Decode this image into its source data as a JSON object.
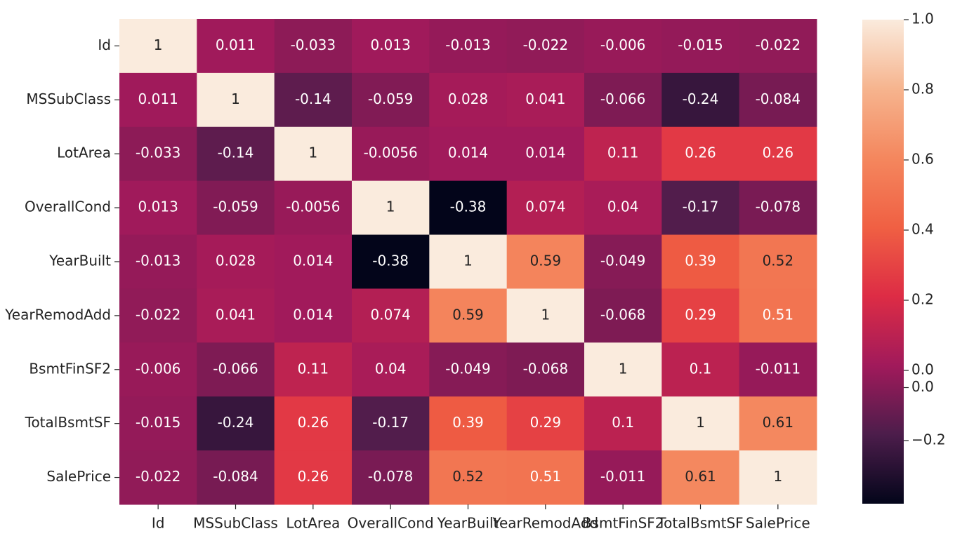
{
  "chart_data": {
    "type": "heatmap",
    "x_categories": [
      "Id",
      "MSSubClass",
      "LotArea",
      "OverallCond",
      "YearBuilt",
      "YearRemodAdd",
      "BsmtFinSF2",
      "TotalBsmtSF",
      "SalePrice"
    ],
    "y_categories": [
      "Id",
      "MSSubClass",
      "LotArea",
      "OverallCond",
      "YearBuilt",
      "YearRemodAdd",
      "BsmtFinSF2",
      "TotalBsmtSF",
      "SalePrice"
    ],
    "values": [
      [
        1,
        0.011,
        -0.033,
        0.013,
        -0.013,
        -0.022,
        -0.006,
        -0.015,
        -0.022
      ],
      [
        0.011,
        1,
        -0.14,
        -0.059,
        0.028,
        0.041,
        -0.066,
        -0.24,
        -0.084
      ],
      [
        -0.033,
        -0.14,
        1,
        -0.0056,
        0.014,
        0.014,
        0.11,
        0.26,
        0.26
      ],
      [
        0.013,
        -0.059,
        -0.0056,
        1,
        -0.38,
        0.074,
        0.04,
        -0.17,
        -0.078
      ],
      [
        -0.013,
        0.028,
        0.014,
        -0.38,
        1,
        0.59,
        -0.049,
        0.39,
        0.52
      ],
      [
        -0.022,
        0.041,
        0.014,
        0.074,
        0.59,
        1,
        -0.068,
        0.29,
        0.51
      ],
      [
        -0.006,
        -0.066,
        0.11,
        0.04,
        -0.049,
        -0.068,
        1,
        0.1,
        -0.011
      ],
      [
        -0.015,
        -0.24,
        0.26,
        -0.17,
        0.39,
        0.29,
        0.1,
        1,
        0.61
      ],
      [
        -0.022,
        -0.084,
        0.26,
        -0.078,
        0.52,
        0.51,
        -0.011,
        0.61,
        1
      ]
    ],
    "clim": [
      -0.38,
      1.0
    ],
    "cticks": [
      {
        "value": 1.0,
        "label": "1.0"
      },
      {
        "value": 0.8,
        "label": "0.8"
      },
      {
        "value": 0.6,
        "label": "0.6"
      },
      {
        "value": 0.4,
        "label": "0.4"
      },
      {
        "value": 0.2,
        "label": "0.2"
      },
      {
        "value": 0.0,
        "label": "0.0"
      },
      {
        "value": -0.049,
        "label": "0.0"
      },
      {
        "value": -0.2,
        "label": "−0.2"
      }
    ],
    "colormap": [
      "#03051a",
      "#4c1d4b",
      "#a11a5b",
      "#dd2c45",
      "#f06043",
      "#f4875e",
      "#f6b48e",
      "#faebdd"
    ]
  }
}
